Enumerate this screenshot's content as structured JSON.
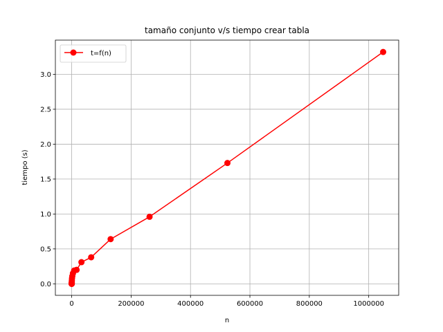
{
  "chart_data": {
    "type": "line",
    "title": "tamaño conjunto v/s tiempo crear tabla",
    "xlabel": "n",
    "ylabel": "tiempo (s)",
    "xlim": [
      -55000,
      1101000
    ],
    "ylim": [
      -0.165,
      3.49
    ],
    "xticks": [
      0,
      200000,
      400000,
      600000,
      800000,
      1000000
    ],
    "yticks": [
      0.0,
      0.5,
      1.0,
      1.5,
      2.0,
      2.5,
      3.0
    ],
    "grid": true,
    "legend": "top-left",
    "series": [
      {
        "name": "t=f(n)",
        "color": "#ff0000",
        "marker": "circle",
        "x": [
          1,
          2,
          4,
          8,
          16,
          32,
          64,
          128,
          256,
          512,
          1024,
          2048,
          4096,
          8192,
          16384,
          32768,
          65536,
          131072,
          262144,
          524288,
          1048576
        ],
        "y": [
          0.0,
          0.0,
          0.0,
          0.0,
          0.01,
          0.01,
          0.01,
          0.02,
          0.03,
          0.05,
          0.08,
          0.11,
          0.15,
          0.19,
          0.2,
          0.31,
          0.38,
          0.64,
          0.96,
          1.73,
          3.32
        ]
      }
    ]
  }
}
